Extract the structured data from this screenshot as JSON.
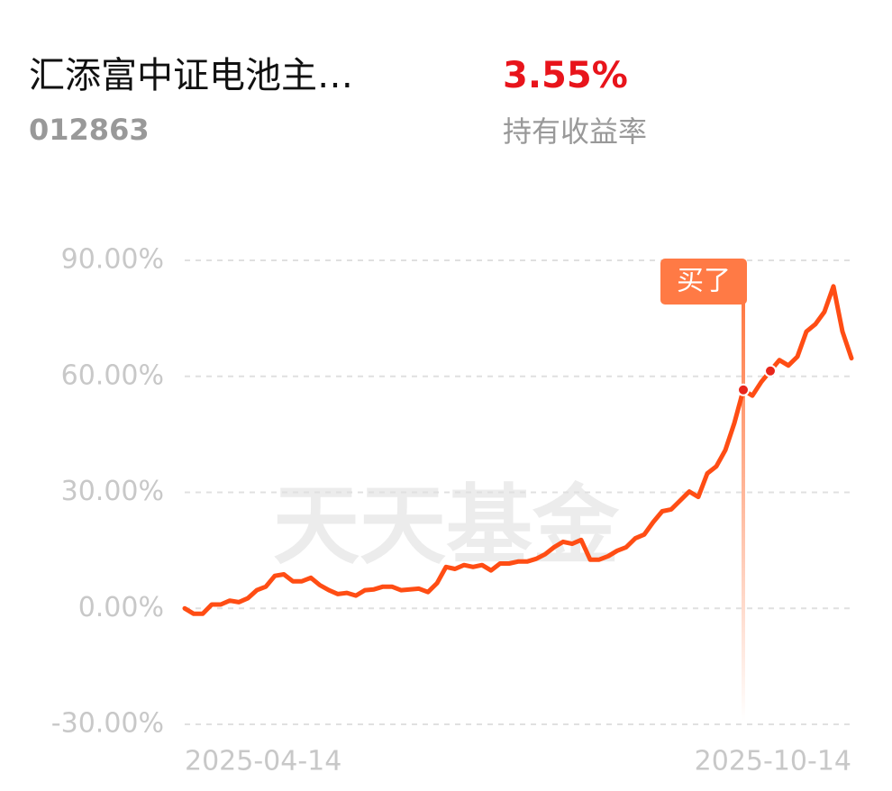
{
  "header": {
    "title": "汇添富中证电池主…",
    "code": "012863",
    "return": "3.55%",
    "return_label": "持有收益率"
  },
  "chart_data": {
    "type": "line",
    "watermark": "天天基金",
    "categories": [
      "2025-04-14",
      null,
      null,
      null,
      null,
      null,
      null,
      null,
      null,
      null,
      null,
      null,
      null,
      null,
      null,
      null,
      null,
      null,
      null,
      null,
      null,
      null,
      null,
      null,
      null,
      null,
      null,
      null,
      null,
      null,
      null,
      null,
      null,
      null,
      null,
      null,
      null,
      null,
      null,
      null,
      null,
      null,
      null,
      null,
      null,
      null,
      null,
      null,
      null,
      null,
      null,
      null,
      null,
      null,
      null,
      null,
      null,
      null,
      null,
      null,
      null,
      null,
      null,
      null,
      null,
      null,
      null,
      null,
      null,
      null,
      null,
      null,
      null,
      null,
      "2025-10-14"
    ],
    "series": [
      {
        "color": "#ff4d14",
        "values": [
          0,
          -1.4,
          -1.4,
          1,
          1,
          2,
          1.6,
          2.6,
          4.7,
          5.6,
          8.4,
          8.8,
          7,
          7,
          7.9,
          6,
          4.7,
          3.7,
          4,
          3.3,
          4.7,
          4.9,
          5.6,
          5.6,
          4.7,
          4.9,
          5.1,
          4.2,
          6.5,
          10.7,
          10.2,
          11.2,
          10.7,
          11.2,
          9.8,
          11.6,
          11.6,
          12.1,
          12.1,
          12.8,
          14,
          15.8,
          17.2,
          16.7,
          17.7,
          12.6,
          12.6,
          13.5,
          14.9,
          15.8,
          18.1,
          19.1,
          22.3,
          25.1,
          25.6,
          27.9,
          30.2,
          28.8,
          34.9,
          36.7,
          40.9,
          47.9,
          56.5,
          55,
          58.6,
          61.4,
          64.2,
          62.8,
          65.1,
          71.6,
          73.5,
          76.7,
          83.3,
          71.6,
          64.7
        ]
      }
    ],
    "ylim": [
      -30,
      90
    ],
    "yticks": [
      {
        "value": 90,
        "label": "90.00%"
      },
      {
        "value": 60,
        "label": "60.00%"
      },
      {
        "value": 30,
        "label": "30.00%"
      },
      {
        "value": 0,
        "label": "0.00%"
      },
      {
        "value": -30,
        "label": "-30.00%"
      }
    ],
    "grid": true,
    "marker_indices": [
      62,
      65
    ],
    "annotation": "买了"
  }
}
